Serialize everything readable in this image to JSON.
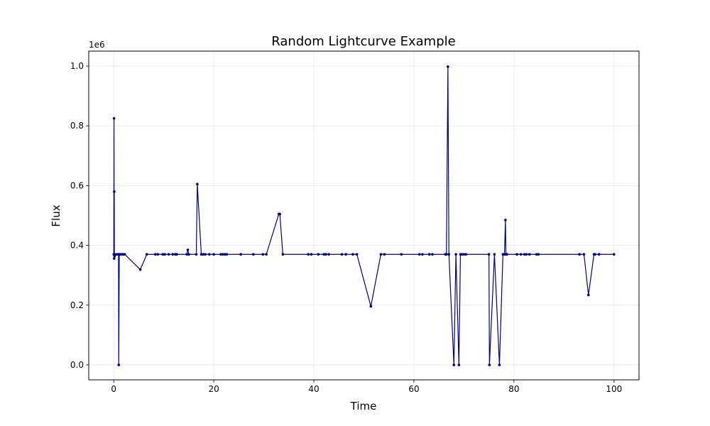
{
  "chart_data": {
    "type": "line",
    "title": "Random Lightcurve Example",
    "xlabel": "Time",
    "ylabel": "Flux",
    "y_offset_label": "1e6",
    "xlim": [
      -5,
      105
    ],
    "ylim": [
      -0.05,
      1.05
    ],
    "x_ticks": [
      0,
      20,
      40,
      60,
      80,
      100
    ],
    "x_tick_labels": [
      "0",
      "20",
      "40",
      "60",
      "80",
      "100"
    ],
    "y_ticks": [
      0.0,
      0.2,
      0.4,
      0.6,
      0.8,
      1.0
    ],
    "y_tick_labels": [
      "0.0",
      "0.2",
      "0.4",
      "0.6",
      "0.8",
      "1.0"
    ],
    "grid": true,
    "series_color": "#000080",
    "series": [
      {
        "x": [
          0.0,
          0.05,
          0.08,
          0.1,
          0.12,
          0.15,
          0.5,
          0.8,
          0.95,
          1.0,
          1.1,
          1.3,
          1.6,
          1.9,
          2.2,
          5.3,
          6.6,
          8.3,
          8.8,
          9.8,
          10.2,
          11.0,
          11.8,
          12.3,
          12.6,
          14.6,
          14.8,
          15.0,
          16.5,
          16.7,
          17.5,
          17.9,
          18.3,
          19.1,
          20.0,
          21.4,
          21.8,
          22.2,
          22.6,
          25.4,
          27.9,
          29.8,
          30.5,
          33.0,
          33.2,
          33.8,
          38.9,
          39.5,
          40.9,
          42.0,
          42.4,
          43.0,
          45.6,
          46.4,
          47.8,
          48.6,
          51.4,
          53.4,
          54.1,
          57.5,
          61.1,
          61.7,
          63.1,
          63.7,
          66.3,
          66.5,
          66.8,
          67.0,
          68.0,
          68.4,
          69.0,
          69.3,
          69.6,
          70.0,
          70.4,
          75.0,
          75.1,
          76.1,
          77.1,
          77.8,
          78.1,
          78.3,
          78.4,
          78.6,
          80.6,
          81.4,
          82.1,
          82.5,
          83.1,
          84.5,
          84.9,
          93.1,
          94.0,
          94.9,
          96.0,
          96.2,
          97.0,
          100.0
        ],
        "y": [
          0.37,
          0.825,
          0.356,
          0.58,
          0.37,
          0.364,
          0.37,
          0.37,
          0.37,
          0.0,
          0.37,
          0.37,
          0.37,
          0.37,
          0.37,
          0.319,
          0.37,
          0.37,
          0.37,
          0.37,
          0.37,
          0.37,
          0.37,
          0.37,
          0.37,
          0.37,
          0.385,
          0.37,
          0.37,
          0.605,
          0.37,
          0.37,
          0.37,
          0.37,
          0.37,
          0.37,
          0.37,
          0.37,
          0.37,
          0.37,
          0.37,
          0.37,
          0.37,
          0.505,
          0.505,
          0.37,
          0.37,
          0.37,
          0.37,
          0.37,
          0.37,
          0.37,
          0.37,
          0.37,
          0.37,
          0.37,
          0.196,
          0.37,
          0.37,
          0.37,
          0.37,
          0.37,
          0.37,
          0.37,
          0.37,
          0.37,
          0.998,
          0.37,
          0.0,
          0.37,
          0.0,
          0.37,
          0.37,
          0.37,
          0.37,
          0.37,
          0.0,
          0.37,
          0.0,
          0.37,
          0.37,
          0.485,
          0.37,
          0.37,
          0.37,
          0.37,
          0.37,
          0.37,
          0.37,
          0.37,
          0.37,
          0.37,
          0.37,
          0.234,
          0.37,
          0.37,
          0.37,
          0.37
        ]
      }
    ]
  }
}
